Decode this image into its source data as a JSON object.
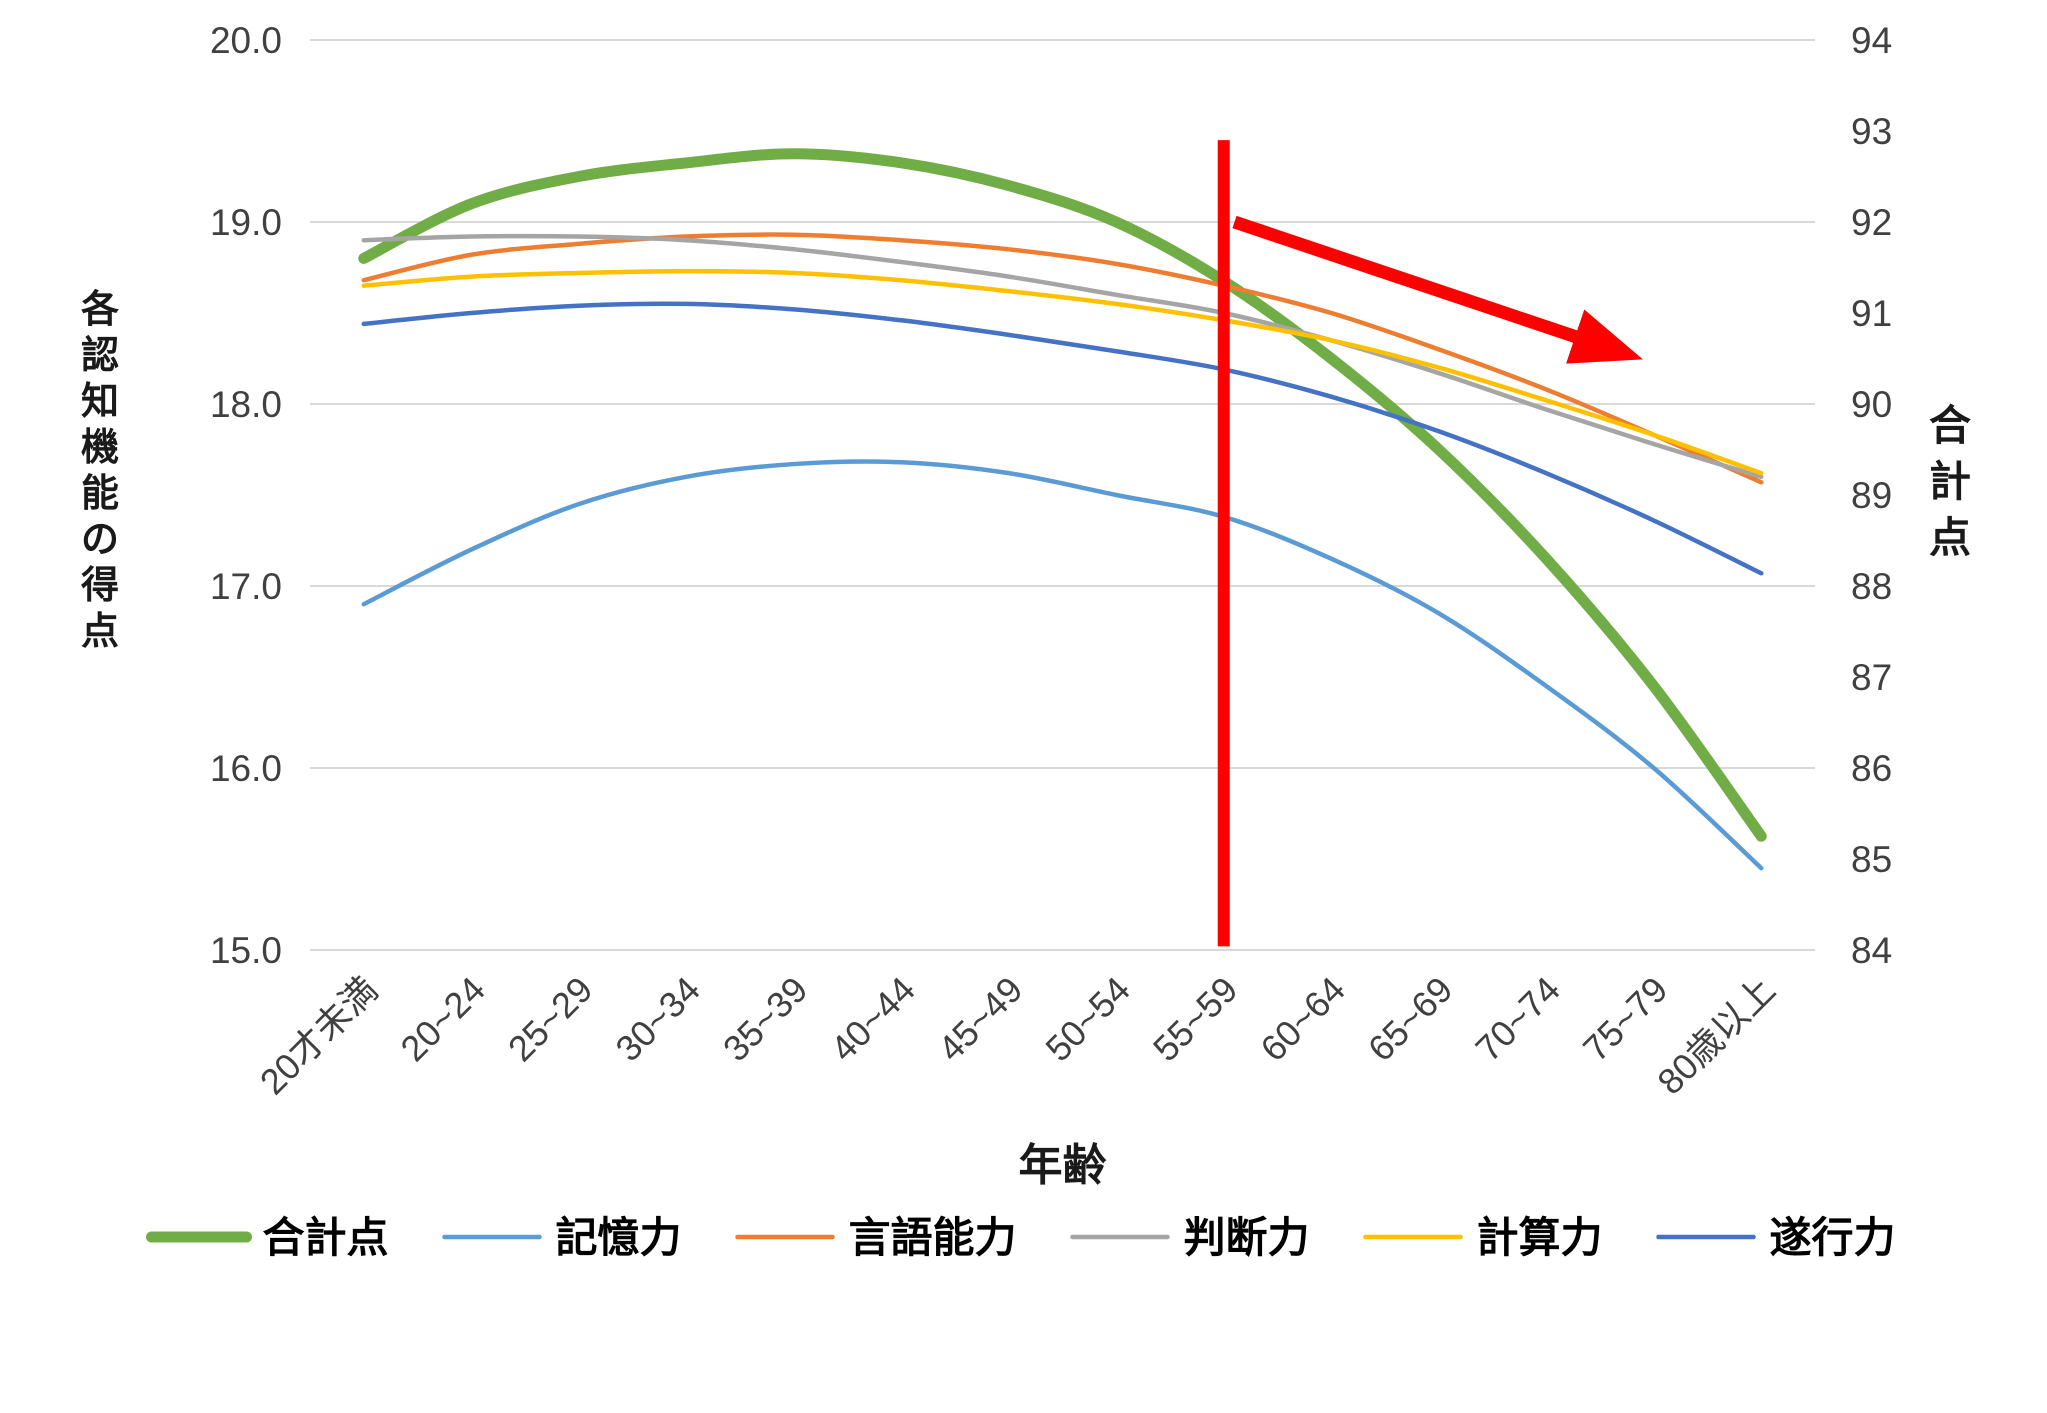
{
  "chart_data": {
    "type": "line",
    "title": "",
    "x_axis": {
      "label": "年齢",
      "categories": [
        "20才未満",
        "20~24",
        "25~29",
        "30~34",
        "35~39",
        "40~44",
        "45~49",
        "50~54",
        "55~59",
        "60~64",
        "65~69",
        "70~74",
        "75~79",
        "80歳以上"
      ]
    },
    "left_axis": {
      "label": "各認知機能の得点",
      "min": 15.0,
      "max": 20.0,
      "tick_step": 1.0,
      "tick_labels": [
        "20.0",
        "19.0",
        "18.0",
        "17.0",
        "16.0",
        "15.0"
      ]
    },
    "right_axis": {
      "label": "合計点",
      "min": 84,
      "max": 94,
      "tick_step": 1,
      "tick_labels": [
        "94",
        "93",
        "92",
        "91",
        "90",
        "89",
        "88",
        "87",
        "86",
        "85",
        "84"
      ]
    },
    "grid": true,
    "legend_position": "bottom",
    "series": [
      {
        "id": "total-score",
        "name": "合計点",
        "axis": "right",
        "color": "#70AD47",
        "stroke_width": 11,
        "values": [
          91.6,
          92.2,
          92.5,
          92.65,
          92.75,
          92.65,
          92.4,
          92.0,
          91.35,
          90.5,
          89.5,
          88.3,
          86.9,
          85.25
        ]
      },
      {
        "id": "memory",
        "name": "記憶力",
        "axis": "left",
        "color": "#5B9BD5",
        "stroke_width": 4.5,
        "values": [
          16.9,
          17.2,
          17.45,
          17.6,
          17.67,
          17.68,
          17.62,
          17.5,
          17.38,
          17.15,
          16.85,
          16.45,
          16.0,
          15.45
        ]
      },
      {
        "id": "language",
        "name": "言語能力",
        "axis": "left",
        "color": "#ED7D31",
        "stroke_width": 4.5,
        "values": [
          18.68,
          18.82,
          18.88,
          18.92,
          18.93,
          18.9,
          18.85,
          18.77,
          18.65,
          18.5,
          18.3,
          18.08,
          17.83,
          17.57
        ]
      },
      {
        "id": "judgment",
        "name": "判断力",
        "axis": "left",
        "color": "#A5A5A5",
        "stroke_width": 4.5,
        "values": [
          18.9,
          18.92,
          18.92,
          18.9,
          18.85,
          18.78,
          18.7,
          18.6,
          18.5,
          18.35,
          18.17,
          17.97,
          17.78,
          17.6
        ]
      },
      {
        "id": "calculation",
        "name": "計算力",
        "axis": "left",
        "color": "#FFC000",
        "stroke_width": 4.5,
        "values": [
          18.65,
          18.7,
          18.72,
          18.73,
          18.72,
          18.68,
          18.62,
          18.55,
          18.46,
          18.35,
          18.2,
          18.02,
          17.83,
          17.62
        ]
      },
      {
        "id": "execution",
        "name": "遂行力",
        "axis": "left",
        "color": "#4472C4",
        "stroke_width": 4.5,
        "values": [
          18.44,
          18.5,
          18.54,
          18.55,
          18.52,
          18.46,
          18.38,
          18.29,
          18.19,
          18.04,
          17.85,
          17.62,
          17.36,
          17.07
        ]
      }
    ],
    "annotations": {
      "vertical_line": {
        "color": "#FF0000",
        "stroke_width": 12,
        "category_index": 8,
        "top_left_value": 19.45,
        "bottom_left_value": 15.02
      },
      "arrow": {
        "color": "#FF0000",
        "stroke_width": 13,
        "from": {
          "category_position": 8.1,
          "right_value": 92.0
        },
        "to": {
          "category_position": 11.75,
          "right_value": 90.55
        }
      }
    }
  },
  "colors": {
    "background": "#FFFFFF",
    "grid": "#D9D9D9",
    "tick_text": "#404040",
    "axis_title_text": "#1A1A1A",
    "legend_text": "#000000"
  }
}
